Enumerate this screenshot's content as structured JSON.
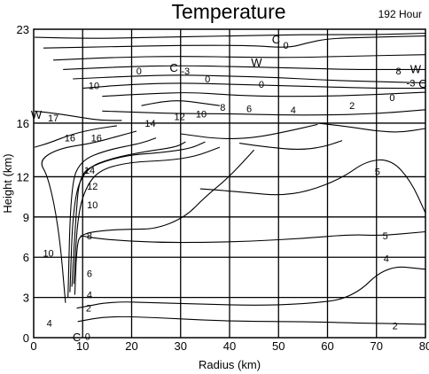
{
  "chart_data": {
    "type": "contour",
    "title": "Temperature",
    "subtitle": "192 Hour",
    "xlabel": "Radius (km)",
    "ylabel": "Height (km)",
    "xlim": [
      0,
      80
    ],
    "ylim": [
      0,
      23
    ],
    "x_ticks": [
      0,
      10,
      20,
      30,
      40,
      50,
      60,
      70,
      80
    ],
    "y_ticks": [
      0,
      3,
      6,
      9,
      12,
      16,
      23
    ],
    "y_gridlines": [
      3,
      6,
      9,
      12,
      16
    ],
    "grid": true,
    "contours": [
      {
        "level": "2",
        "points": [
          [
            9,
            1.2
          ],
          [
            15,
            1.6
          ],
          [
            25,
            1.5
          ],
          [
            35,
            1.3
          ],
          [
            45,
            1.2
          ],
          [
            55,
            1.2
          ],
          [
            65,
            1.1
          ],
          [
            80,
            1.0
          ]
        ]
      },
      {
        "level": "4",
        "points": [
          [
            8.8,
            2.2
          ],
          [
            16,
            2.7
          ],
          [
            25,
            2.6
          ],
          [
            35,
            2.5
          ],
          [
            45,
            2.4
          ],
          [
            55,
            2.5
          ],
          [
            65,
            2.9
          ],
          [
            72,
            5.4
          ],
          [
            80,
            5.1
          ]
        ]
      },
      {
        "level": "5",
        "points": [
          [
            9.5,
            7.6
          ],
          [
            15,
            7.3
          ],
          [
            25,
            7.1
          ],
          [
            35,
            7.1
          ],
          [
            45,
            7.2
          ],
          [
            55,
            7.4
          ],
          [
            65,
            7.7
          ],
          [
            71,
            7.6
          ],
          [
            80,
            7.9
          ]
        ]
      },
      {
        "level": "5",
        "points": [
          [
            34,
            11.1
          ],
          [
            38,
            11.0
          ],
          [
            44,
            10.8
          ],
          [
            50,
            10.6
          ],
          [
            56,
            10.9
          ],
          [
            63,
            11.9
          ],
          [
            68,
            13.2
          ],
          [
            73,
            13.3
          ],
          [
            77,
            11.7
          ],
          [
            80,
            9.3
          ]
        ]
      },
      {
        "level": "6",
        "points": [
          [
            8.4,
            3.2
          ],
          [
            8.8,
            6.8
          ],
          [
            9.5,
            7.7
          ],
          [
            14,
            8.0
          ],
          [
            20,
            8.1
          ],
          [
            25,
            8.1
          ],
          [
            31,
            9.0
          ],
          [
            35,
            10.5
          ],
          [
            40,
            12.0
          ],
          [
            45,
            14.0
          ]
        ]
      },
      {
        "level": "8",
        "points": [
          [
            8.2,
            4.0
          ],
          [
            9.0,
            9.3
          ],
          [
            11,
            11.5
          ],
          [
            14,
            12.6
          ],
          [
            20,
            13.1
          ],
          [
            27,
            13.2
          ],
          [
            33,
            13.5
          ],
          [
            38,
            14.2
          ]
        ]
      },
      {
        "level": "10",
        "points": [
          [
            7.8,
            3.8
          ],
          [
            8.6,
            9.0
          ],
          [
            9.4,
            12.2
          ],
          [
            13,
            13.0
          ],
          [
            19,
            13.6
          ],
          [
            26,
            13.8
          ],
          [
            32,
            14.1
          ],
          [
            35,
            14.6
          ]
        ]
      },
      {
        "level": "12",
        "points": [
          [
            7.4,
            3.4
          ],
          [
            8.1,
            10.3
          ],
          [
            10.5,
            12.6
          ],
          [
            16,
            13.4
          ],
          [
            23,
            13.9
          ],
          [
            29,
            14.2
          ],
          [
            31,
            14.6
          ]
        ]
      },
      {
        "level": "14",
        "points": [
          [
            7.0,
            3.0
          ],
          [
            7.6,
            11.3
          ],
          [
            9.5,
            13.2
          ],
          [
            15,
            14.0
          ],
          [
            22,
            14.5
          ],
          [
            25,
            14.9
          ]
        ]
      },
      {
        "level": "16",
        "points": [
          [
            6.5,
            2.6
          ],
          [
            5.2,
            8.0
          ],
          [
            3,
            12.0
          ],
          [
            1,
            13.2
          ],
          [
            5,
            14.1
          ],
          [
            12,
            14.5
          ],
          [
            17,
            15.0
          ],
          [
            21,
            15.4
          ]
        ]
      },
      {
        "level": "17",
        "points": [
          [
            0.2,
            14.2
          ],
          [
            3,
            14.5
          ],
          [
            8,
            15.2
          ],
          [
            13,
            15.6
          ],
          [
            17,
            15.8
          ]
        ]
      },
      {
        "level": "10",
        "points": [
          [
            0.2,
            16.9
          ],
          [
            5,
            16.7
          ],
          [
            10,
            16.4
          ],
          [
            14,
            16.2
          ],
          [
            18,
            16.2
          ]
        ]
      },
      {
        "level": "0",
        "points": [
          [
            14,
            16.9
          ],
          [
            22,
            16.8
          ],
          [
            30,
            16.7
          ],
          [
            40,
            16.7
          ],
          [
            50,
            16.6
          ],
          [
            60,
            16.6
          ],
          [
            70,
            16.7
          ],
          [
            80,
            17.0
          ]
        ]
      },
      {
        "level": "0",
        "points": [
          [
            58,
            16.0
          ],
          [
            65,
            15.7
          ],
          [
            70,
            15.4
          ],
          [
            75,
            15.3
          ],
          [
            80,
            15.6
          ]
        ]
      },
      {
        "level": "2",
        "points": [
          [
            42,
            14.5
          ],
          [
            48,
            14.2
          ],
          [
            54,
            14.0
          ],
          [
            59,
            14.2
          ],
          [
            63,
            14.7
          ]
        ]
      },
      {
        "level": "4",
        "points": [
          [
            30,
            15.2
          ],
          [
            38,
            14.8
          ],
          [
            45,
            14.9
          ],
          [
            52,
            15.4
          ],
          [
            58,
            15.9
          ]
        ]
      },
      {
        "level": "-3",
        "points": [
          [
            22,
            17.3
          ],
          [
            26,
            17.6
          ],
          [
            30,
            17.7
          ],
          [
            34,
            17.5
          ],
          [
            38,
            17.3
          ]
        ]
      },
      {
        "level": "0",
        "points": [
          [
            14,
            18.0
          ],
          [
            24,
            18.2
          ],
          [
            32,
            18.3
          ],
          [
            40,
            18.1
          ],
          [
            48,
            18.0
          ],
          [
            58,
            18.0
          ],
          [
            68,
            18.1
          ],
          [
            80,
            18.3
          ]
        ]
      },
      {
        "level": "8",
        "points": [
          [
            10,
            18.6
          ],
          [
            20,
            18.9
          ],
          [
            30,
            19.0
          ],
          [
            40,
            18.9
          ],
          [
            50,
            18.8
          ],
          [
            60,
            18.7
          ],
          [
            70,
            18.6
          ],
          [
            80,
            18.6
          ]
        ]
      },
      {
        "level": "",
        "points": [
          [
            8,
            19.3
          ],
          [
            20,
            19.5
          ],
          [
            30,
            19.6
          ],
          [
            40,
            19.5
          ],
          [
            50,
            19.4
          ],
          [
            60,
            19.2
          ],
          [
            70,
            19.1
          ],
          [
            80,
            19.0
          ]
        ]
      },
      {
        "level": "",
        "points": [
          [
            6,
            20.0
          ],
          [
            18,
            20.2
          ],
          [
            30,
            20.3
          ],
          [
            42,
            20.2
          ],
          [
            54,
            20.1
          ],
          [
            64,
            20.0
          ],
          [
            72,
            20.0
          ],
          [
            80,
            20.0
          ]
        ]
      },
      {
        "level": "",
        "points": [
          [
            4,
            20.7
          ],
          [
            16,
            20.9
          ],
          [
            30,
            21.0
          ],
          [
            44,
            20.9
          ],
          [
            55,
            20.9
          ],
          [
            65,
            21.0
          ],
          [
            80,
            21.1
          ]
        ]
      },
      {
        "level": "0",
        "points": [
          [
            2,
            21.6
          ],
          [
            16,
            21.7
          ],
          [
            30,
            21.8
          ],
          [
            44,
            21.8
          ],
          [
            52,
            21.6
          ],
          [
            56,
            22.0
          ],
          [
            60,
            22.3
          ],
          [
            68,
            22.4
          ],
          [
            80,
            22.5
          ]
        ]
      },
      {
        "level": "",
        "points": [
          [
            0.2,
            22.4
          ],
          [
            12,
            22.3
          ],
          [
            25,
            22.4
          ],
          [
            40,
            22.5
          ],
          [
            55,
            22.6
          ],
          [
            70,
            22.6
          ],
          [
            80,
            22.7
          ]
        ]
      }
    ],
    "annotations": [
      {
        "text": "C",
        "x": 49.5,
        "y": 22.2
      },
      {
        "text": "0",
        "x": 51.5,
        "y": 21.8
      },
      {
        "text": "W",
        "x": 45.5,
        "y": 20.5
      },
      {
        "text": "0",
        "x": 21.5,
        "y": 19.9
      },
      {
        "text": "C",
        "x": 28.6,
        "y": 20.1
      },
      {
        "text": "-3",
        "x": 31.0,
        "y": 19.9
      },
      {
        "text": "0",
        "x": 35.5,
        "y": 19.3
      },
      {
        "text": "8",
        "x": 74.5,
        "y": 19.9
      },
      {
        "text": "W",
        "x": 78.0,
        "y": 20.0
      },
      {
        "text": "10",
        "x": 12.3,
        "y": 18.8
      },
      {
        "text": "0",
        "x": 46.5,
        "y": 18.9
      },
      {
        "text": "-3",
        "x": 77.0,
        "y": 19.0
      },
      {
        "text": "C",
        "x": 80.1,
        "y": 18.9
      },
      {
        "text": "0",
        "x": 73.2,
        "y": 17.9
      },
      {
        "text": "W",
        "x": 0.5,
        "y": 16.6
      },
      {
        "text": "17",
        "x": 4.0,
        "y": 16.4
      },
      {
        "text": "14",
        "x": 23.8,
        "y": 16.0
      },
      {
        "text": "12",
        "x": 29.8,
        "y": 16.5
      },
      {
        "text": "10",
        "x": 34.2,
        "y": 16.7
      },
      {
        "text": "8",
        "x": 38.6,
        "y": 17.2
      },
      {
        "text": "6",
        "x": 44.0,
        "y": 17.1
      },
      {
        "text": "4",
        "x": 53.0,
        "y": 17.0
      },
      {
        "text": "2",
        "x": 65.0,
        "y": 17.3
      },
      {
        "text": "16",
        "x": 7.4,
        "y": 14.9
      },
      {
        "text": "16",
        "x": 12.8,
        "y": 14.9
      },
      {
        "text": "5",
        "x": 70.2,
        "y": 12.4
      },
      {
        "text": "14",
        "x": 11.4,
        "y": 12.5
      },
      {
        "text": "12",
        "x": 12.0,
        "y": 11.3
      },
      {
        "text": "10",
        "x": 12.0,
        "y": 9.9
      },
      {
        "text": "8",
        "x": 11.4,
        "y": 7.6
      },
      {
        "text": "5",
        "x": 71.8,
        "y": 7.6
      },
      {
        "text": "10",
        "x": 3.0,
        "y": 6.3
      },
      {
        "text": "4",
        "x": 72.0,
        "y": 5.9
      },
      {
        "text": "6",
        "x": 11.4,
        "y": 4.8
      },
      {
        "text": "4",
        "x": 11.4,
        "y": 3.2
      },
      {
        "text": "2",
        "x": 11.2,
        "y": 2.2
      },
      {
        "text": "4",
        "x": 3.2,
        "y": 1.1
      },
      {
        "text": "2",
        "x": 73.8,
        "y": 0.9
      },
      {
        "text": "0",
        "x": 11.0,
        "y": 0.1
      },
      {
        "text": "C",
        "x": 8.8,
        "y": 0.0
      }
    ]
  }
}
